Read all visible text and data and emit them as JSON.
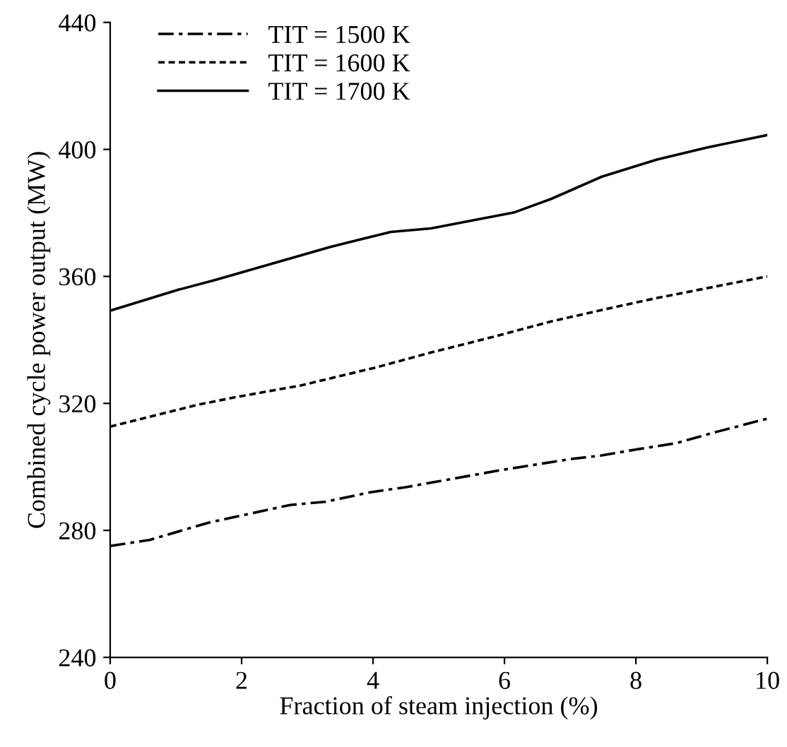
{
  "chart_data": {
    "type": "line",
    "xlabel": "Fraction of steam injection (%)",
    "ylabel": "Combined cycle power output (MW)",
    "xlim": [
      0,
      10
    ],
    "ylim": [
      240,
      440
    ],
    "xticks": [
      0,
      2,
      4,
      6,
      8,
      10
    ],
    "yticks": [
      240,
      280,
      320,
      360,
      400,
      440
    ],
    "grid": false,
    "legend": "top left",
    "series": [
      {
        "name": "TIT = 1500 K",
        "color": "#000000",
        "line_style": "dashdot",
        "x": [
          0,
          0.6,
          1.51,
          2.74,
          3.27,
          3.96,
          4.5,
          5.95,
          7.02,
          7.48,
          8.01,
          8.62,
          9.15,
          10
        ],
        "values": [
          275.1,
          277,
          282.5,
          288,
          289,
          292,
          293.6,
          299,
          302.5,
          303.6,
          305.5,
          307.5,
          310.6,
          315.2
        ]
      },
      {
        "name": "TIT = 1600 K",
        "color": "#000000",
        "line_style": "dotted",
        "x": [
          0,
          1.36,
          1.97,
          2.89,
          4.04,
          4.95,
          5.8,
          6.71,
          7.63,
          8.32,
          10
        ],
        "values": [
          312.7,
          319.7,
          322.2,
          325.6,
          331.3,
          336.4,
          340.8,
          345.8,
          350.1,
          353.2,
          360
        ]
      },
      {
        "name": "TIT = 1700 K",
        "color": "#000000",
        "line_style": "solid",
        "x": [
          0,
          1.04,
          1.59,
          3.35,
          4.27,
          4.88,
          6.14,
          6.71,
          7.48,
          8.32,
          9.08,
          10
        ],
        "values": [
          349.2,
          355.8,
          358.8,
          369.3,
          374,
          375.1,
          380.1,
          384.4,
          391.4,
          396.8,
          400.6,
          404.5
        ]
      }
    ]
  }
}
